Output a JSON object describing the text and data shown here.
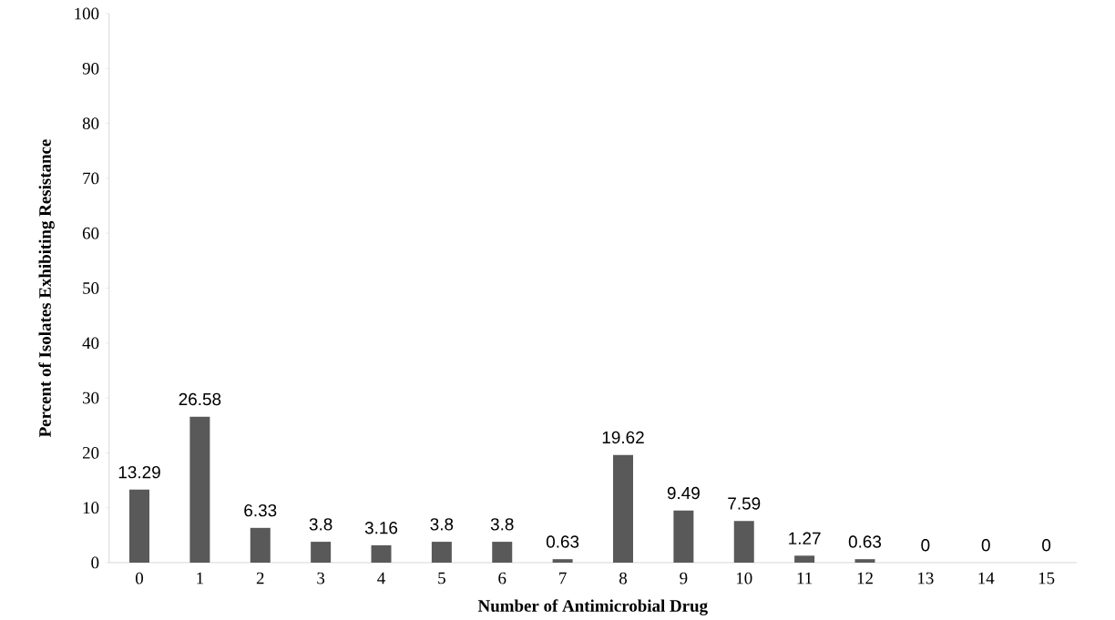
{
  "chart_data": {
    "type": "bar",
    "xlabel": "Number of Antimicrobial Drug",
    "ylabel": "Percent of Isolates Exhibiting Resistance",
    "categories": [
      "0",
      "1",
      "2",
      "3",
      "4",
      "5",
      "6",
      "7",
      "8",
      "9",
      "10",
      "11",
      "12",
      "13",
      "14",
      "15"
    ],
    "values": [
      13.29,
      26.58,
      6.33,
      3.8,
      3.16,
      3.8,
      3.8,
      0.63,
      19.62,
      9.49,
      7.59,
      1.27,
      0.63,
      0,
      0,
      0
    ],
    "color": "#595959",
    "ylim": [
      0,
      100
    ],
    "yticks": [
      0,
      10,
      20,
      30,
      40,
      50,
      60,
      70,
      80,
      90,
      100
    ],
    "data_labels": true
  }
}
